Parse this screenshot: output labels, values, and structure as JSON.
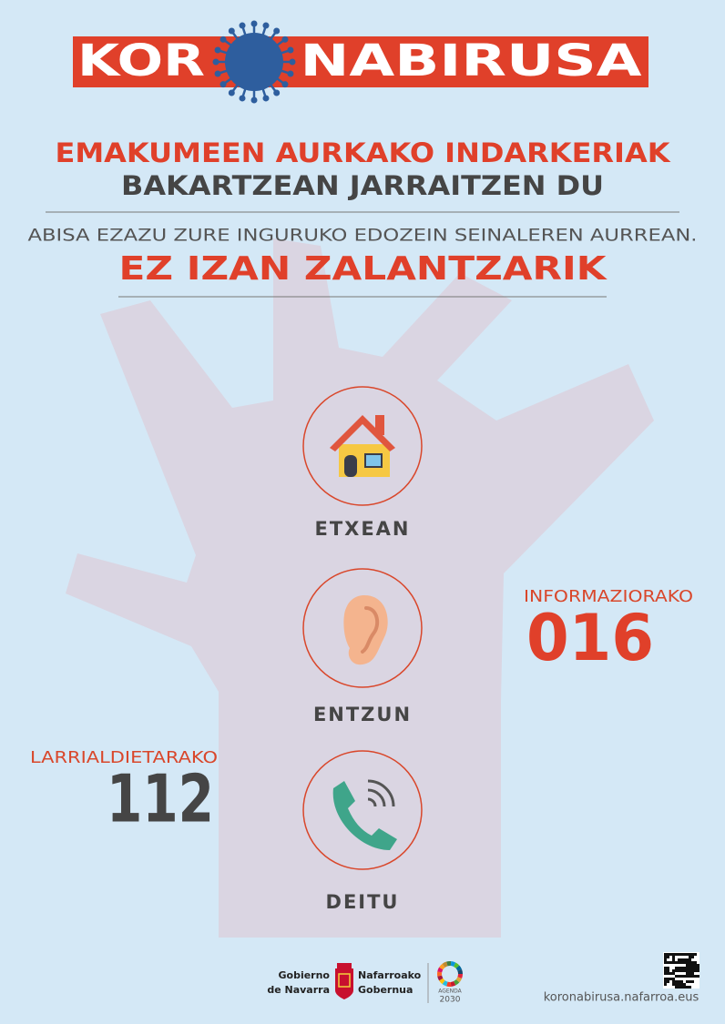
{
  "header": {
    "brand_left": "KOR",
    "brand_right": "NABIRUSA"
  },
  "headline": {
    "line1": "EMAKUMEEN AURKAKO INDARKERIAK",
    "line2": "BAKARTZEAN JARRAITZEN DU"
  },
  "subline": "ABISA EZAZU ZURE INGURUKO EDOZEIN SEINALEREN AURREAN.",
  "callout": "EZ IZAN ZALANTZARIK",
  "steps": [
    {
      "label": "ETXEAN"
    },
    {
      "label": "ENTZUN"
    },
    {
      "label": "DEITU"
    }
  ],
  "info": {
    "label": "INFORMAZIORAKO",
    "number": "016"
  },
  "emergency": {
    "label": "LARRIALDIETARAKO",
    "number": "112"
  },
  "footer": {
    "gov_left": [
      "Gobierno",
      "de Navarra"
    ],
    "gov_right": [
      "Nafarroako",
      "Gobernua"
    ],
    "agenda": [
      "AGENDA",
      "2030"
    ],
    "url": "koronabirusa.nafarroa.eus"
  }
}
